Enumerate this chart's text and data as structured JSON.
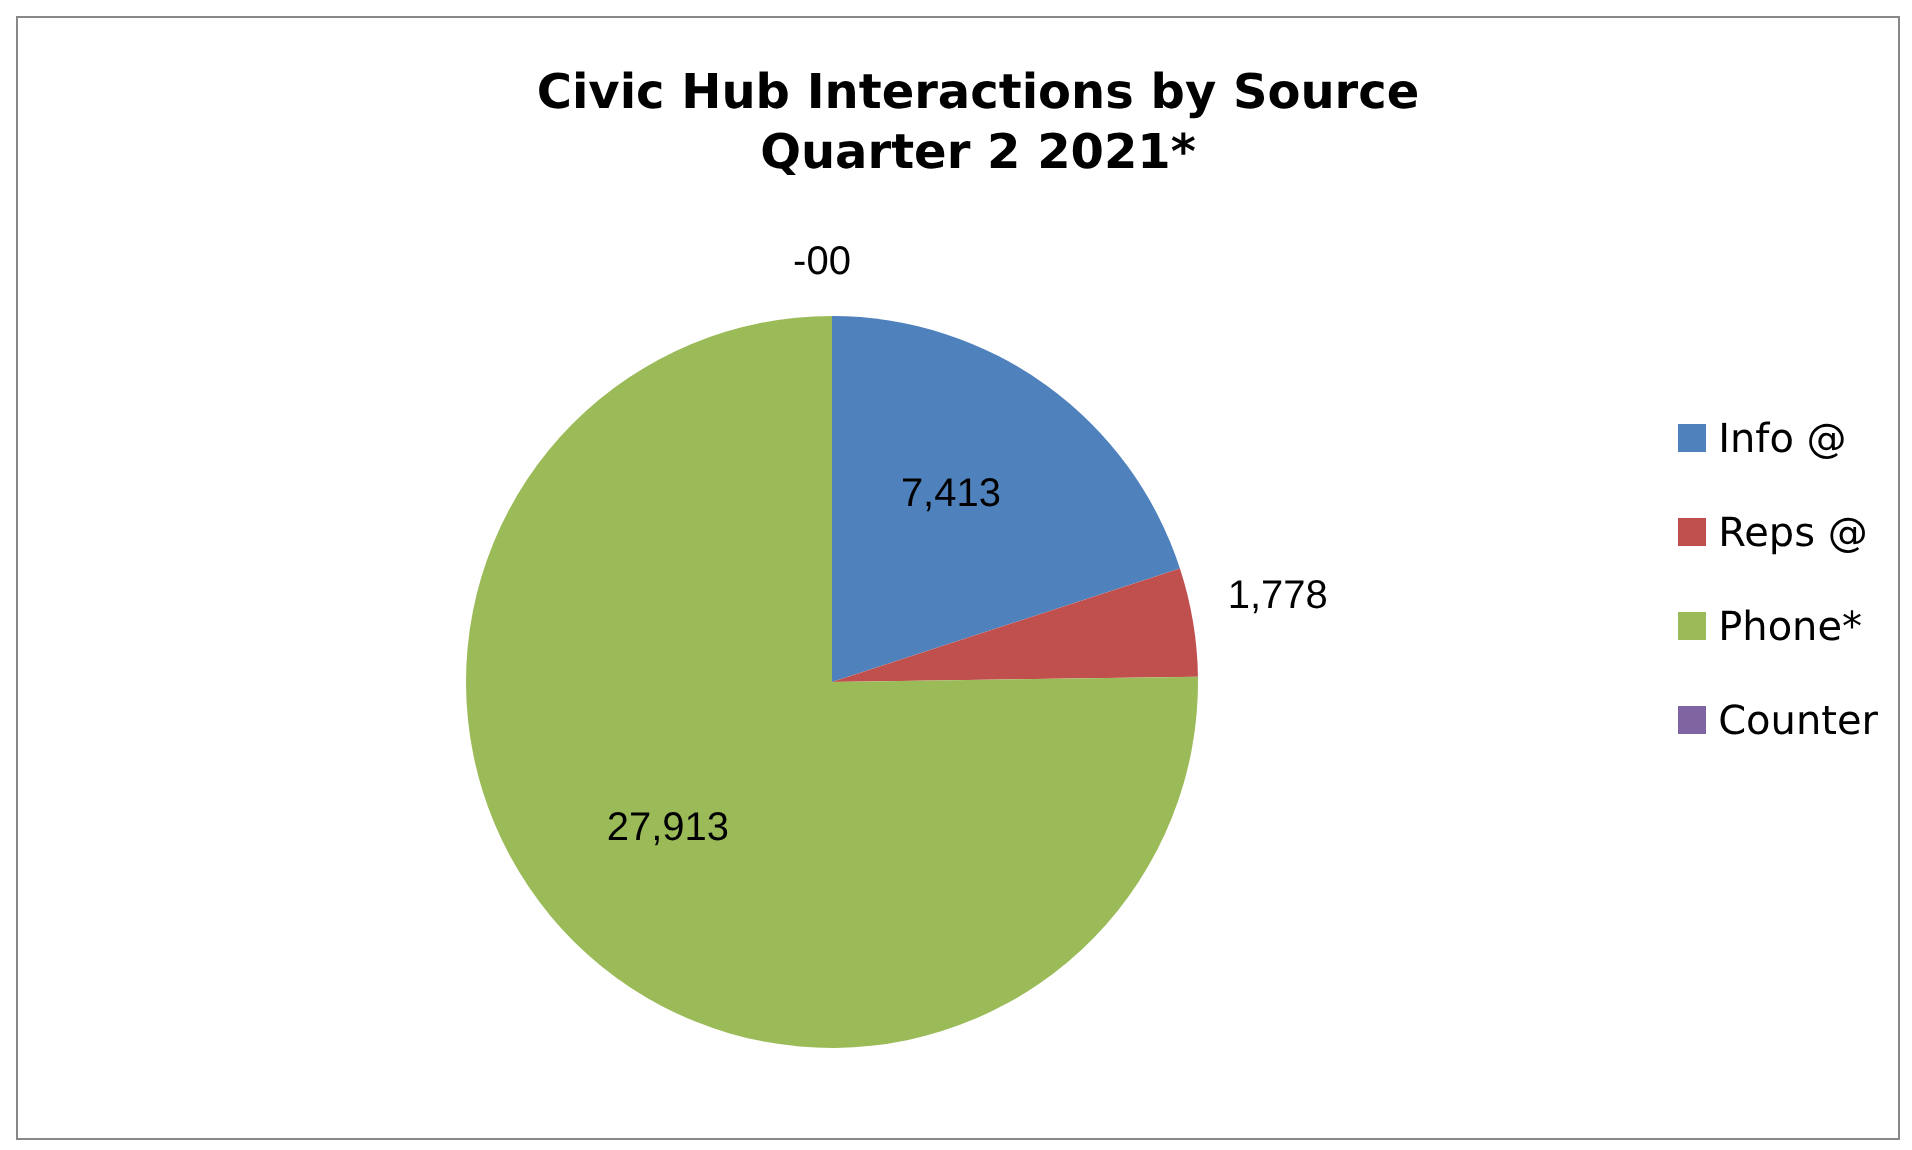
{
  "chart_data": {
    "type": "pie",
    "title": "Civic Hub Interactions by Source\nQuarter 2 2021*",
    "categories": [
      "Info @",
      "Reps @",
      "Phone*",
      "Counter"
    ],
    "values": [
      7413,
      1778,
      27913,
      0
    ],
    "colors": [
      "#4f81bd",
      "#c0504d",
      "#9bbb59",
      "#8064a2"
    ],
    "value_labels": [
      "7,413",
      "1,778",
      "27,913",
      "-00"
    ],
    "legend": "right"
  }
}
